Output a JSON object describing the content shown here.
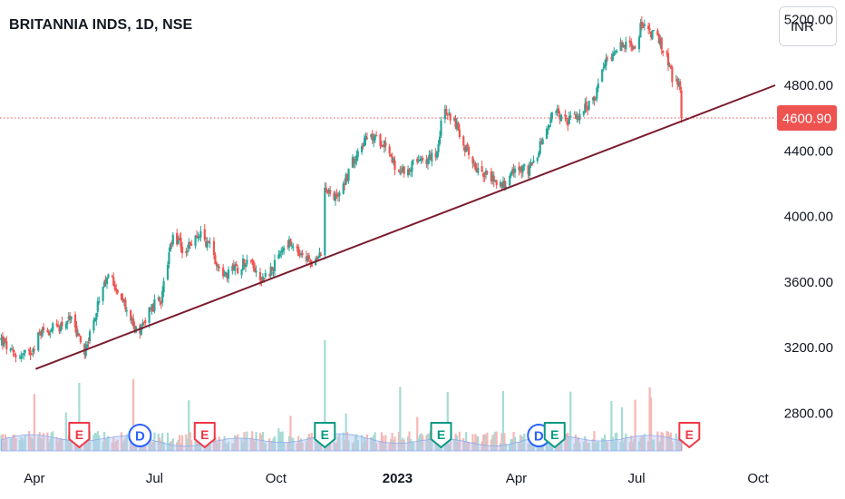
{
  "header": {
    "title": "BRITANNIA INDS, 1D, NSE"
  },
  "currency": {
    "label": "INR"
  },
  "colors": {
    "up": "#26a69a",
    "down": "#ef5350",
    "trendline": "#7b1c2e",
    "volume_up": "#a5dbd5",
    "volume_down": "#f7b7b5",
    "volume_ma": "#b5c9f5",
    "price_line": "#ef5350"
  },
  "chart_data": {
    "type": "candlestick",
    "ticker": "BRITANNIA INDS",
    "interval": "1D",
    "exchange": "NSE",
    "currency": "INR",
    "y_ticks": [
      2800,
      3200,
      3600,
      4000,
      4400,
      4800,
      5200
    ],
    "y_tick_labels": [
      "2800.00",
      "3200.00",
      "3600.00",
      "4000.00",
      "4400.00",
      "4800.00",
      "5200.00"
    ],
    "ylim": [
      2565,
      5320
    ],
    "x_tick_labels": [
      "Apr",
      "Jul",
      "Oct",
      "2023",
      "Apr",
      "Jul",
      "Oct"
    ],
    "x_range": [
      "2022-03-06",
      "2023-10-14"
    ],
    "last_price": 4600.9,
    "last_price_label": "4600.90",
    "price_path": [
      [
        "2022-03-07",
        3250
      ],
      [
        "2022-03-16",
        3150
      ],
      [
        "2022-03-28",
        3160
      ],
      [
        "2022-04-06",
        3300
      ],
      [
        "2022-04-18",
        3320
      ],
      [
        "2022-04-28",
        3380
      ],
      [
        "2022-05-09",
        3180
      ],
      [
        "2022-05-19",
        3450
      ],
      [
        "2022-05-28",
        3660
      ],
      [
        "2022-06-08",
        3460
      ],
      [
        "2022-06-18",
        3290
      ],
      [
        "2022-06-27",
        3430
      ],
      [
        "2022-07-06",
        3500
      ],
      [
        "2022-07-15",
        3880
      ],
      [
        "2022-07-24",
        3780
      ],
      [
        "2022-08-03",
        3900
      ],
      [
        "2022-08-12",
        3820
      ],
      [
        "2022-08-21",
        3650
      ],
      [
        "2022-09-01",
        3680
      ],
      [
        "2022-09-10",
        3750
      ],
      [
        "2022-09-20",
        3620
      ],
      [
        "2022-09-30",
        3700
      ],
      [
        "2022-10-09",
        3850
      ],
      [
        "2022-10-20",
        3750
      ],
      [
        "2022-10-31",
        3720
      ],
      [
        "2022-11-05",
        3780
      ],
      [
        "2022-11-07",
        4200
      ],
      [
        "2022-11-14",
        4100
      ],
      [
        "2022-11-24",
        4250
      ],
      [
        "2022-12-04",
        4450
      ],
      [
        "2022-12-13",
        4480
      ],
      [
        "2022-12-23",
        4450
      ],
      [
        "2023-01-02",
        4250
      ],
      [
        "2023-01-13",
        4320
      ],
      [
        "2023-01-21",
        4330
      ],
      [
        "2023-01-31",
        4400
      ],
      [
        "2023-02-04",
        4630
      ],
      [
        "2023-02-12",
        4600
      ],
      [
        "2023-02-21",
        4420
      ],
      [
        "2023-03-02",
        4300
      ],
      [
        "2023-03-12",
        4240
      ],
      [
        "2023-03-23",
        4200
      ],
      [
        "2023-04-02",
        4300
      ],
      [
        "2023-04-11",
        4280
      ],
      [
        "2023-04-20",
        4450
      ],
      [
        "2023-04-30",
        4650
      ],
      [
        "2023-05-10",
        4580
      ],
      [
        "2023-05-20",
        4630
      ],
      [
        "2023-05-29",
        4700
      ],
      [
        "2023-06-08",
        4950
      ],
      [
        "2023-06-17",
        5050
      ],
      [
        "2023-06-28",
        5020
      ],
      [
        "2023-07-04",
        5150
      ],
      [
        "2023-07-13",
        5120
      ],
      [
        "2023-07-23",
        5000
      ],
      [
        "2023-07-28",
        4850
      ],
      [
        "2023-08-02",
        4790
      ],
      [
        "2023-08-06",
        4600.9
      ]
    ],
    "trendline": {
      "start": [
        "2022-04-02",
        3070
      ],
      "end": [
        "2023-10-14",
        4800
      ]
    },
    "event_markers": [
      {
        "label": "E",
        "type": "earnings",
        "date": "2022-05-05",
        "status": "down"
      },
      {
        "label": "D",
        "type": "dividend",
        "date": "2022-06-20",
        "status": "neutral"
      },
      {
        "label": "E",
        "type": "earnings",
        "date": "2022-08-08",
        "status": "down"
      },
      {
        "label": "E",
        "type": "earnings",
        "date": "2022-11-07",
        "status": "up"
      },
      {
        "label": "E",
        "type": "earnings",
        "date": "2023-02-03",
        "status": "up"
      },
      {
        "label": "D",
        "type": "dividend",
        "date": "2023-04-18",
        "status": "neutral"
      },
      {
        "label": "E",
        "type": "earnings",
        "date": "2023-04-30",
        "status": "up"
      },
      {
        "label": "E",
        "type": "earnings",
        "date": "2023-08-10",
        "status": "down"
      }
    ]
  }
}
